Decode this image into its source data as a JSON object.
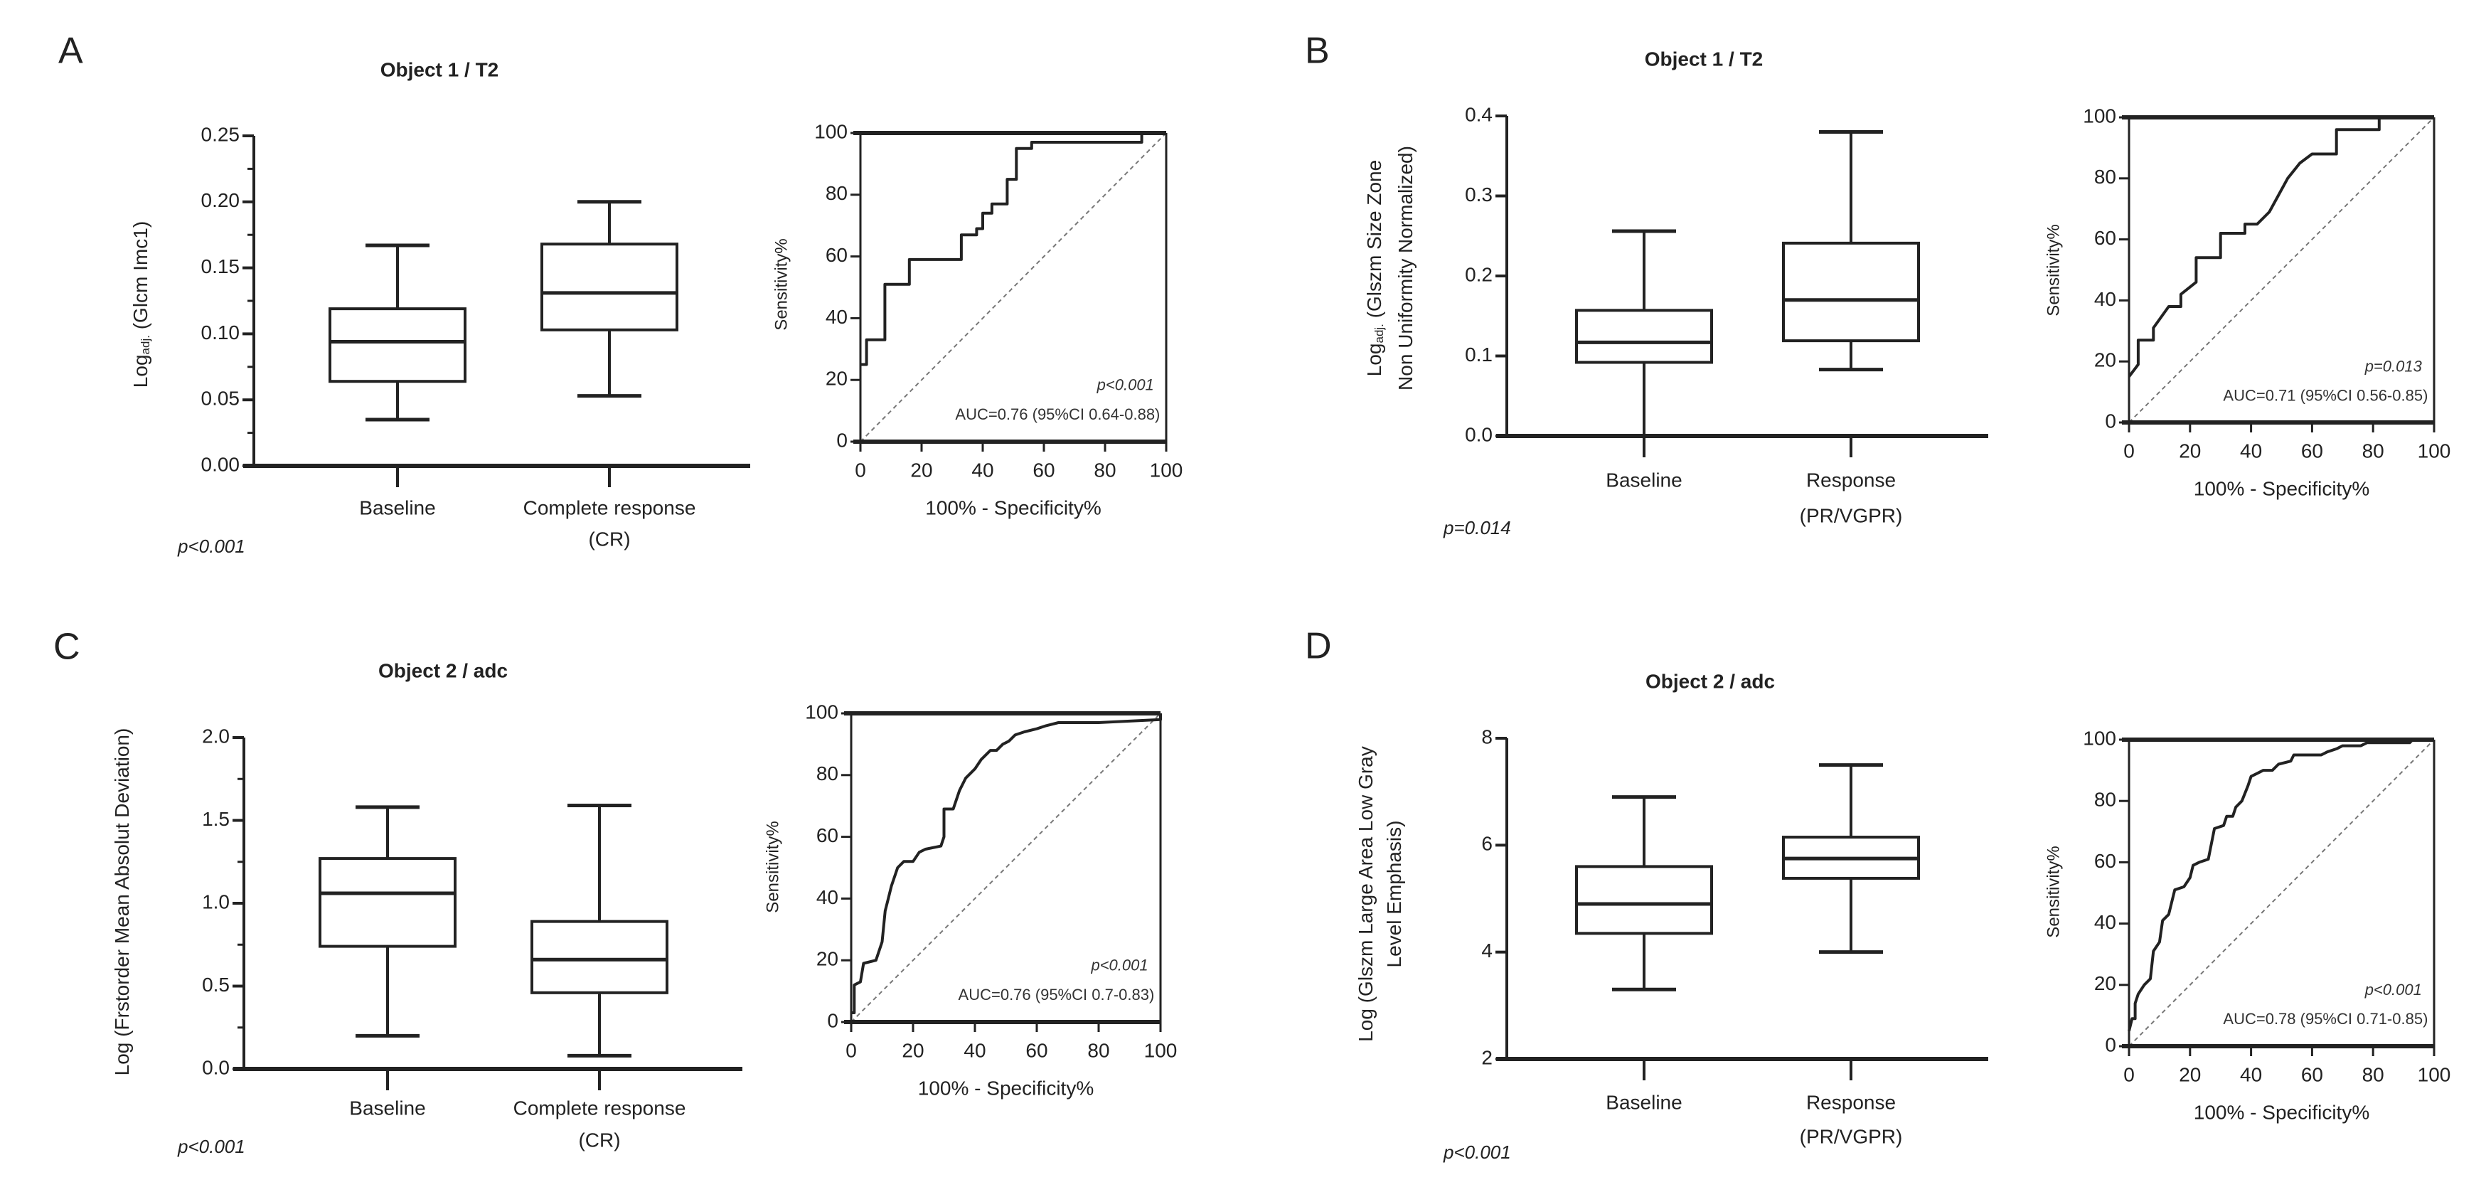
{
  "chart_data": [
    {
      "panel": "A",
      "title": "Object 1 / T2",
      "p_value_box": "p<0.001",
      "box": {
        "type": "boxplot",
        "ylabel": {
          "lines": [
            {
              "prefix": "Log",
              "sub": "adj.",
              "rest": " (Glcm Imc1)"
            }
          ]
        },
        "ylim": [
          0,
          0.25
        ],
        "yticks": [
          0,
          0.05,
          0.1,
          0.15,
          0.2,
          0.25
        ],
        "ytick_labels": [
          "0.00",
          "0.05",
          "0.10",
          "0.15",
          "0.20",
          "0.25"
        ],
        "yminor_step": 0.025,
        "categories": [
          [
            "Baseline"
          ],
          [
            "Complete response",
            "(CR)"
          ]
        ],
        "series": [
          {
            "name": "Baseline",
            "min": 0.035,
            "q1": 0.064,
            "median": 0.094,
            "q3": 0.119,
            "max": 0.167
          },
          {
            "name": "Complete response (CR)",
            "min": 0.053,
            "q1": 0.103,
            "median": 0.131,
            "q3": 0.168,
            "max": 0.2
          }
        ]
      },
      "roc": {
        "type": "line",
        "xlabel": "100% - Specificity%",
        "ylabel": "Sensitivity%",
        "xlim": [
          0,
          100
        ],
        "ylim": [
          0,
          100
        ],
        "ticks": [
          0,
          20,
          40,
          60,
          80,
          100
        ],
        "tick_labels": [
          "0",
          "20",
          "40",
          "60",
          "80",
          "100"
        ],
        "p_value": "p<0.001",
        "auc": "AUC=0.76 (95%CI 0.64-0.88)",
        "curve": [
          [
            0,
            25
          ],
          [
            2,
            25
          ],
          [
            2,
            33
          ],
          [
            8,
            33
          ],
          [
            8,
            51
          ],
          [
            16,
            51
          ],
          [
            16,
            59
          ],
          [
            33,
            59
          ],
          [
            33,
            67
          ],
          [
            38,
            67
          ],
          [
            38,
            69
          ],
          [
            40,
            69
          ],
          [
            40,
            74
          ],
          [
            43,
            74
          ],
          [
            43,
            77
          ],
          [
            48,
            77
          ],
          [
            48,
            85
          ],
          [
            51,
            85
          ],
          [
            51,
            95
          ],
          [
            56,
            95
          ],
          [
            56,
            97
          ],
          [
            92,
            97
          ],
          [
            92,
            100
          ],
          [
            100,
            100
          ]
        ]
      }
    },
    {
      "panel": "B",
      "title": "Object 1 / T2",
      "p_value_box": "p=0.014",
      "box": {
        "type": "boxplot",
        "ylabel": {
          "lines": [
            {
              "prefix": "Log",
              "sub": "adj.",
              "rest": " (Glszm Size Zone"
            },
            {
              "prefix": "Non Uniformity Normalized)",
              "sub": "",
              "rest": ""
            }
          ]
        },
        "ylim": [
          0,
          0.4
        ],
        "yticks": [
          0,
          0.1,
          0.2,
          0.3,
          0.4
        ],
        "ytick_labels": [
          "0.0",
          "0.1",
          "0.2",
          "0.3",
          "0.4"
        ],
        "yminor_step": 0,
        "categories": [
          [
            "Baseline"
          ],
          [
            "Response",
            "(PR/VGPR)"
          ]
        ],
        "series": [
          {
            "name": "Baseline",
            "min": 0.0,
            "q1": 0.092,
            "median": 0.117,
            "q3": 0.157,
            "max": 0.256
          },
          {
            "name": "Response (PR/VGPR)",
            "min": 0.083,
            "q1": 0.119,
            "median": 0.17,
            "q3": 0.241,
            "max": 0.38
          }
        ]
      },
      "roc": {
        "type": "line",
        "xlabel": "100% - Specificity%",
        "ylabel": "Sensitivity%",
        "xlim": [
          0,
          100
        ],
        "ylim": [
          0,
          100
        ],
        "ticks": [
          0,
          20,
          40,
          60,
          80,
          100
        ],
        "tick_labels": [
          "0",
          "20",
          "40",
          "60",
          "80",
          "100"
        ],
        "p_value": "p=0.013",
        "auc": "AUC=0.71 (95%CI 0.56-0.85)",
        "curve": [
          [
            0,
            15
          ],
          [
            3,
            19
          ],
          [
            3,
            27
          ],
          [
            8,
            27
          ],
          [
            8,
            31
          ],
          [
            13,
            38
          ],
          [
            17,
            38
          ],
          [
            17,
            42
          ],
          [
            22,
            46
          ],
          [
            22,
            54
          ],
          [
            30,
            54
          ],
          [
            30,
            62
          ],
          [
            38,
            62
          ],
          [
            38,
            65
          ],
          [
            42,
            65
          ],
          [
            46,
            69
          ],
          [
            52,
            80
          ],
          [
            56,
            85
          ],
          [
            60,
            88
          ],
          [
            68,
            88
          ],
          [
            68,
            96
          ],
          [
            82,
            96
          ],
          [
            82,
            100
          ],
          [
            100,
            100
          ]
        ]
      }
    },
    {
      "panel": "C",
      "title": "Object 2 / adc",
      "p_value_box": "p<0.001",
      "box": {
        "type": "boxplot",
        "ylabel": {
          "lines": [
            {
              "prefix": "Log (Frstorder Mean Absolut Deviation)",
              "sub": "",
              "rest": ""
            }
          ]
        },
        "ylim": [
          0,
          2.0
        ],
        "yticks": [
          0,
          0.5,
          1.0,
          1.5,
          2.0
        ],
        "ytick_labels": [
          "0.0",
          "0.5",
          "1.0",
          "1.5",
          "2.0"
        ],
        "yminor_step": 0.25,
        "categories": [
          [
            "Baseline"
          ],
          [
            "Complete response",
            "(CR)"
          ]
        ],
        "series": [
          {
            "name": "Baseline",
            "min": 0.2,
            "q1": 0.74,
            "median": 1.06,
            "q3": 1.27,
            "max": 1.58
          },
          {
            "name": "Complete response (CR)",
            "min": 0.08,
            "q1": 0.46,
            "median": 0.66,
            "q3": 0.89,
            "max": 1.59
          }
        ]
      },
      "roc": {
        "type": "line",
        "xlabel": "100% - Specificity%",
        "ylabel": "Sensitivity%",
        "xlim": [
          0,
          100
        ],
        "ylim": [
          0,
          100
        ],
        "ticks": [
          0,
          20,
          40,
          60,
          80,
          100
        ],
        "tick_labels": [
          "0",
          "20",
          "40",
          "60",
          "80",
          "100"
        ],
        "p_value": "p<0.001",
        "auc": "AUC=0.76 (95%CI 0.7-0.83)",
        "curve": [
          [
            0,
            3
          ],
          [
            1,
            3
          ],
          [
            1,
            12
          ],
          [
            3,
            13
          ],
          [
            4,
            19
          ],
          [
            8,
            20
          ],
          [
            10,
            26
          ],
          [
            11,
            36
          ],
          [
            12,
            40
          ],
          [
            13,
            44
          ],
          [
            15,
            50
          ],
          [
            17,
            52
          ],
          [
            20,
            52
          ],
          [
            22,
            55
          ],
          [
            24,
            56
          ],
          [
            29,
            57
          ],
          [
            30,
            60
          ],
          [
            30,
            69
          ],
          [
            33,
            69
          ],
          [
            35,
            75
          ],
          [
            37,
            79
          ],
          [
            40,
            82
          ],
          [
            42,
            85
          ],
          [
            45,
            88
          ],
          [
            47,
            88
          ],
          [
            49,
            90
          ],
          [
            51,
            91
          ],
          [
            53,
            93
          ],
          [
            56,
            94
          ],
          [
            60,
            95
          ],
          [
            63,
            96
          ],
          [
            67,
            97
          ],
          [
            80,
            97
          ],
          [
            100,
            98
          ],
          [
            100,
            100
          ]
        ]
      }
    },
    {
      "panel": "D",
      "title": "Object 2 / adc",
      "p_value_box": "p<0.001",
      "box": {
        "type": "boxplot",
        "ylabel": {
          "lines": [
            {
              "prefix": "Log (Glszm Large Area Low Gray",
              "sub": "",
              "rest": ""
            },
            {
              "prefix": "Level Emphasis)",
              "sub": "",
              "rest": ""
            }
          ]
        },
        "ylim": [
          2,
          8
        ],
        "yticks": [
          2,
          4,
          6,
          8
        ],
        "ytick_labels": [
          "2",
          "4",
          "6",
          "8"
        ],
        "yminor_step": 0,
        "categories": [
          [
            "Baseline"
          ],
          [
            "Response",
            "(PR/VGPR)"
          ]
        ],
        "series": [
          {
            "name": "Baseline",
            "min": 3.3,
            "q1": 4.35,
            "median": 4.9,
            "q3": 5.6,
            "max": 6.9
          },
          {
            "name": "Response (PR/VGPR)",
            "min": 4.0,
            "q1": 5.38,
            "median": 5.75,
            "q3": 6.15,
            "max": 7.5
          }
        ]
      },
      "roc": {
        "type": "line",
        "xlabel": "100% - Specificity%",
        "ylabel": "Sensitivity%",
        "xlim": [
          0,
          100
        ],
        "ylim": [
          0,
          100
        ],
        "ticks": [
          0,
          20,
          40,
          60,
          80,
          100
        ],
        "tick_labels": [
          "0",
          "20",
          "40",
          "60",
          "80",
          "100"
        ],
        "p_value": "p<0.001",
        "auc": "AUC=0.78 (95%CI 0.71-0.85)",
        "curve": [
          [
            0,
            5
          ],
          [
            1,
            9
          ],
          [
            2,
            9
          ],
          [
            2,
            14
          ],
          [
            3,
            17
          ],
          [
            5,
            20
          ],
          [
            7,
            22
          ],
          [
            8,
            31
          ],
          [
            10,
            34
          ],
          [
            11,
            41
          ],
          [
            13,
            43
          ],
          [
            15,
            51
          ],
          [
            18,
            52
          ],
          [
            20,
            55
          ],
          [
            21,
            59
          ],
          [
            23,
            60
          ],
          [
            26,
            61
          ],
          [
            27,
            66
          ],
          [
            28,
            71
          ],
          [
            31,
            72
          ],
          [
            32,
            75
          ],
          [
            34,
            75
          ],
          [
            35,
            78
          ],
          [
            37,
            80
          ],
          [
            39,
            85
          ],
          [
            40,
            88
          ],
          [
            42,
            89
          ],
          [
            44,
            90
          ],
          [
            47,
            90
          ],
          [
            49,
            92
          ],
          [
            53,
            93
          ],
          [
            54,
            95
          ],
          [
            63,
            95
          ],
          [
            65,
            96
          ],
          [
            68,
            97
          ],
          [
            70,
            98
          ],
          [
            76,
            98
          ],
          [
            78,
            99
          ],
          [
            92,
            99
          ],
          [
            93,
            100
          ],
          [
            100,
            100
          ]
        ]
      }
    }
  ]
}
